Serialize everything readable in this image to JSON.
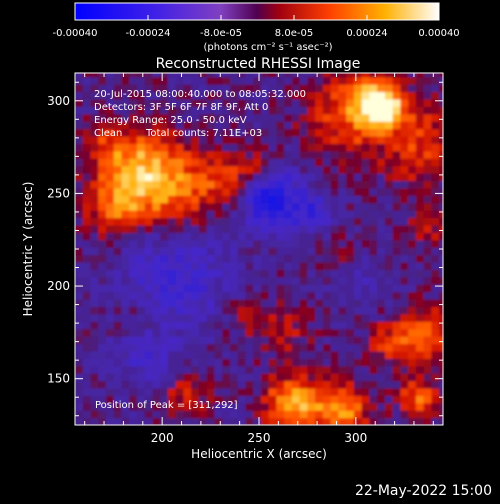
{
  "chart_data": {
    "type": "heatmap",
    "title": "Reconstructed RHESSI Image",
    "xlabel": "Heliocentric X (arcsec)",
    "ylabel": "Heliocentric Y (arcsec)",
    "xlim": [
      155,
      345
    ],
    "ylim": [
      125,
      315
    ],
    "x_ticks": [
      200,
      250,
      300
    ],
    "y_ticks": [
      150,
      200,
      250,
      300
    ],
    "colorbar": {
      "range": [
        -0.0004,
        0.0004
      ],
      "ticks": [
        "-0.00040",
        "-0.00024",
        "-8.0e-05",
        "8.0e-05",
        "0.00024",
        "0.00040"
      ],
      "units_label": "(photons cm⁻² s⁻¹ asec⁻²)",
      "colormap": "blue-purple-red-yellow-white"
    },
    "annotations": {
      "time_range": "20-Jul-2015 08:00:40.000 to 08:05:32.000",
      "detectors": "Detectors: 3F 5F 6F 7F 8F 9F, Att 0",
      "energy_range": "Energy Range: 25.0 - 50.0 keV",
      "algorithm": "Clean",
      "total_counts": "Total counts: 7.11E+03",
      "peak_position": "Position of Peak = [311,292]"
    },
    "peak": {
      "x": 311,
      "y": 292
    }
  },
  "footer": {
    "date": "22-May-2022 15:00"
  },
  "colors": {
    "background": "#000000",
    "text": "#ffffff"
  }
}
